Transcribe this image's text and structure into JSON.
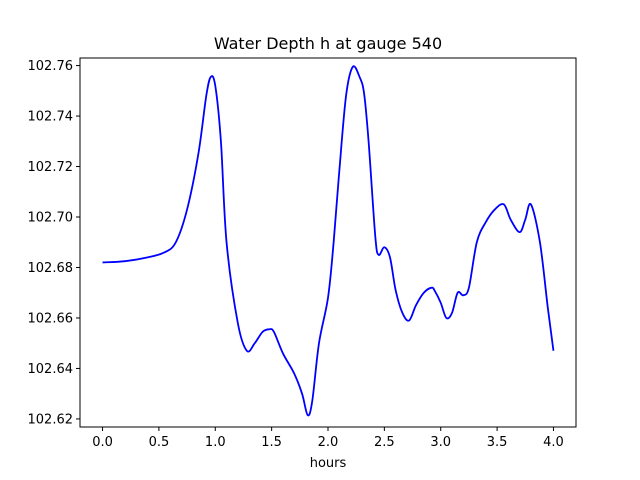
{
  "chart_data": {
    "type": "line",
    "title": "Water Depth h at gauge 540",
    "xlabel": "hours",
    "ylabel": "",
    "xlim": [
      -0.2,
      4.2
    ],
    "ylim": [
      102.6168,
      102.763
    ],
    "xticks": [
      0.0,
      0.5,
      1.0,
      1.5,
      2.0,
      2.5,
      3.0,
      3.5,
      4.0
    ],
    "xtick_labels": [
      "0.0",
      "0.5",
      "1.0",
      "1.5",
      "2.0",
      "2.5",
      "3.0",
      "3.5",
      "4.0"
    ],
    "yticks": [
      102.62,
      102.64,
      102.66,
      102.68,
      102.7,
      102.72,
      102.74,
      102.76
    ],
    "ytick_labels": [
      "102.62",
      "102.64",
      "102.66",
      "102.68",
      "102.70",
      "102.72",
      "102.74",
      "102.76"
    ],
    "grid": false,
    "legend": "none",
    "series": [
      {
        "color": "#0000ff",
        "x": [
          0.0,
          0.2,
          0.4,
          0.55,
          0.65,
          0.75,
          0.85,
          0.92,
          0.96,
          1.0,
          1.05,
          1.1,
          1.2,
          1.28,
          1.35,
          1.42,
          1.48,
          1.52,
          1.6,
          1.7,
          1.77,
          1.82,
          1.86,
          1.92,
          2.0,
          2.05,
          2.1,
          2.16,
          2.22,
          2.28,
          2.32,
          2.36,
          2.42,
          2.45,
          2.5,
          2.55,
          2.6,
          2.66,
          2.72,
          2.78,
          2.85,
          2.92,
          2.95,
          3.0,
          3.05,
          3.1,
          3.15,
          3.2,
          3.25,
          3.32,
          3.4,
          3.48,
          3.56,
          3.62,
          3.7,
          3.75,
          3.8,
          3.88,
          3.95,
          4.0
        ],
        "y": [
          102.682,
          102.6825,
          102.684,
          102.686,
          102.69,
          102.703,
          102.725,
          102.748,
          102.7555,
          102.752,
          102.73,
          102.69,
          102.658,
          102.647,
          102.65,
          102.6545,
          102.6555,
          102.6545,
          102.646,
          102.638,
          102.63,
          102.6215,
          102.627,
          102.65,
          102.668,
          102.69,
          102.718,
          102.748,
          102.7595,
          102.7555,
          102.749,
          102.73,
          102.692,
          102.685,
          102.688,
          102.684,
          102.671,
          102.662,
          102.659,
          102.665,
          102.67,
          102.672,
          102.6705,
          102.666,
          102.66,
          102.662,
          102.67,
          102.669,
          102.672,
          102.69,
          102.698,
          102.703,
          102.705,
          102.699,
          102.694,
          102.699,
          102.705,
          102.69,
          102.664,
          102.647
        ]
      }
    ]
  }
}
